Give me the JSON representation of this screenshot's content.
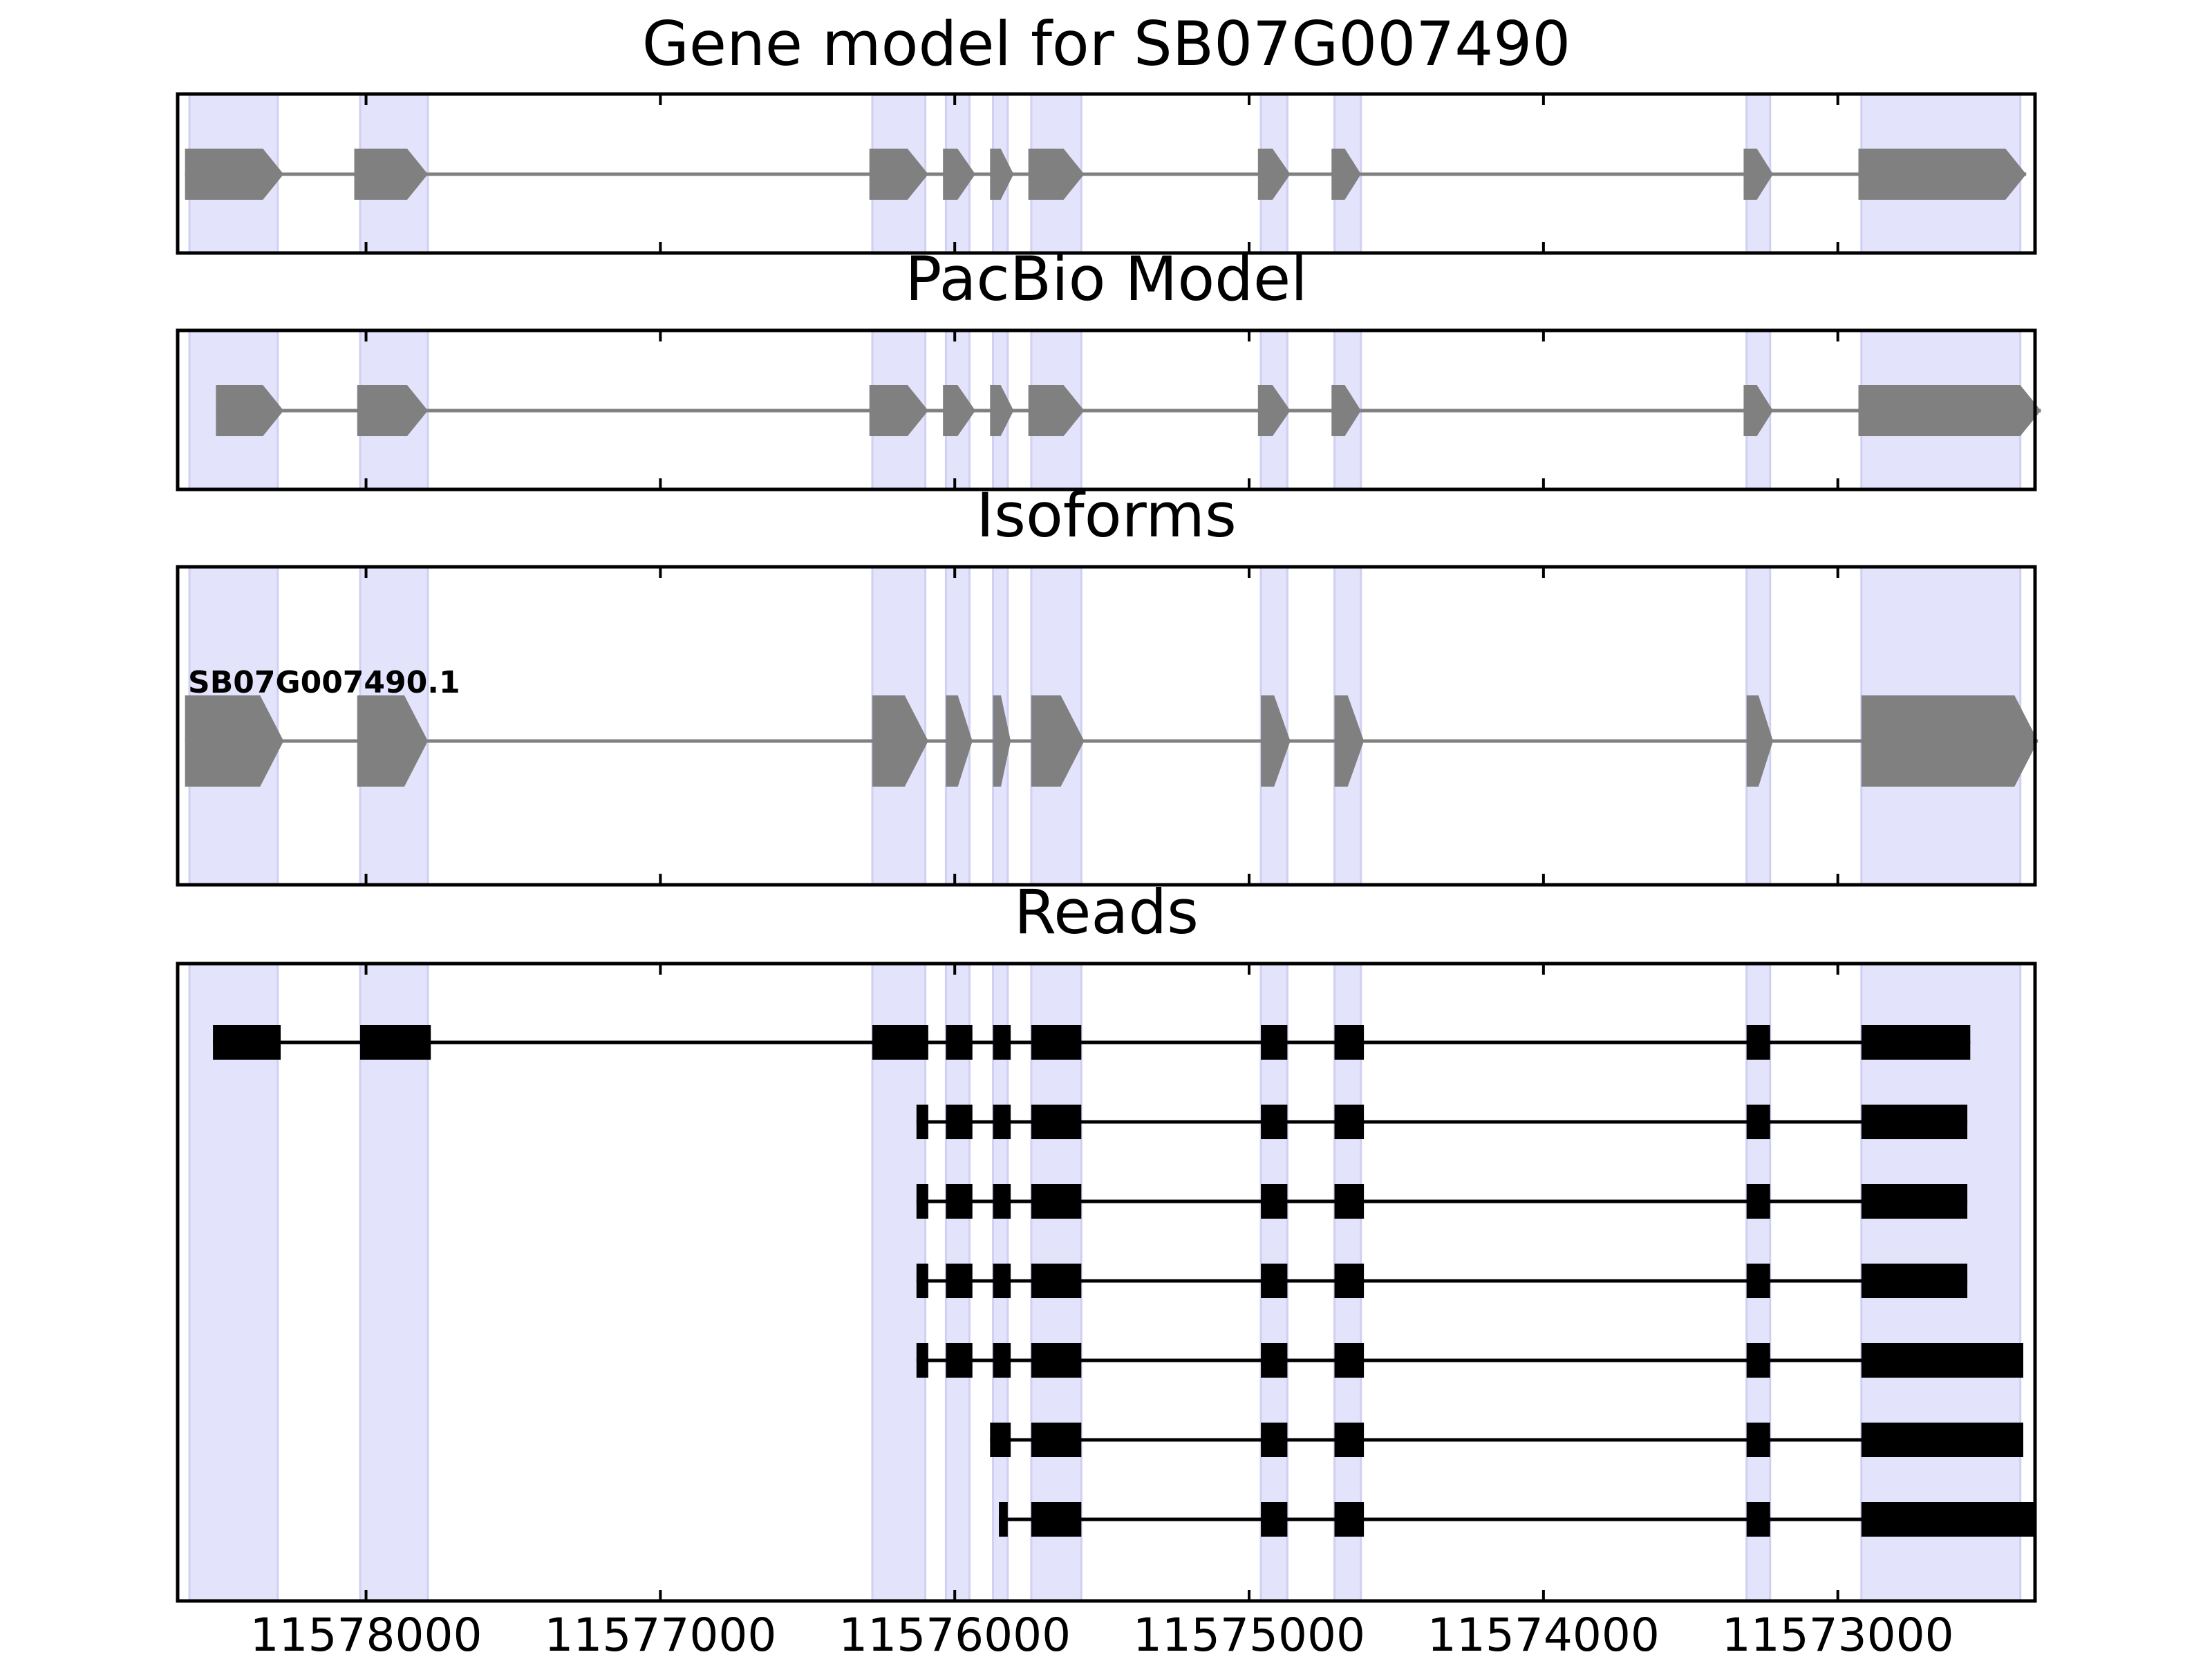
{
  "colors": {
    "highlight": "#e3e3fb",
    "highlight_edge": "#cfd0f2",
    "exon_gray": "#808080",
    "read_black": "#000000",
    "frame": "#000000"
  },
  "chart_data": {
    "type": "gene-structure",
    "x_reversed": true,
    "xlim": [
      11578640,
      11572330
    ],
    "xticks": [
      11578000,
      11577000,
      11576000,
      11575000,
      11574000,
      11573000
    ],
    "xtick_labels": [
      "11578000",
      "11577000",
      "11576000",
      "11575000",
      "11574000",
      "11573000"
    ],
    "highlight_regions": [
      [
        11578600,
        11578300
      ],
      [
        11578020,
        11577790
      ],
      [
        11576280,
        11576100
      ],
      [
        11576030,
        11575950
      ],
      [
        11575870,
        11575820
      ],
      [
        11575740,
        11575570
      ],
      [
        11574960,
        11574870
      ],
      [
        11574710,
        11574620
      ],
      [
        11573310,
        11573230
      ],
      [
        11572920,
        11572380
      ]
    ],
    "panels": [
      {
        "id": "gene-model",
        "title": "Gene model for SB07G007490",
        "style": "arrow",
        "tracks": [
          {
            "label": "",
            "exons": [
              [
                11578615,
                11578280
              ],
              [
                11578040,
                11577790
              ],
              [
                11576290,
                11576090
              ],
              [
                11576040,
                11575930
              ],
              [
                11575880,
                11575800
              ],
              [
                11575750,
                11575560
              ],
              [
                11574970,
                11574860
              ],
              [
                11574720,
                11574620
              ],
              [
                11573320,
                11573220
              ],
              [
                11572930,
                11572360
              ]
            ]
          }
        ]
      },
      {
        "id": "pacbio-model",
        "title": "PacBio Model",
        "style": "arrow",
        "tracks": [
          {
            "label": "",
            "exons": [
              [
                11578510,
                11578280
              ],
              [
                11578030,
                11577790
              ],
              [
                11576290,
                11576090
              ],
              [
                11576040,
                11575930
              ],
              [
                11575880,
                11575800
              ],
              [
                11575750,
                11575560
              ],
              [
                11574970,
                11574860
              ],
              [
                11574720,
                11574620
              ],
              [
                11573320,
                11573220
              ],
              [
                11572930,
                11572310
              ]
            ]
          }
        ]
      },
      {
        "id": "isoforms",
        "title": "Isoforms",
        "style": "arrow-large",
        "tracks": [
          {
            "label": "SB07G007490.1",
            "exons": [
              [
                11578615,
                11578280
              ],
              [
                11578030,
                11577790
              ],
              [
                11576280,
                11576090
              ],
              [
                11576030,
                11575940
              ],
              [
                11575870,
                11575810
              ],
              [
                11575740,
                11575560
              ],
              [
                11574960,
                11574860
              ],
              [
                11574710,
                11574610
              ],
              [
                11573310,
                11573220
              ],
              [
                11572920,
                11572320
              ]
            ]
          }
        ]
      },
      {
        "id": "reads",
        "title": "Reads",
        "style": "block",
        "tracks": [
          {
            "label": "",
            "exons": [
              [
                11578520,
                11578290
              ],
              [
                11578020,
                11577780
              ],
              [
                11576280,
                11576090
              ],
              [
                11576030,
                11575940
              ],
              [
                11575870,
                11575810
              ],
              [
                11575740,
                11575570
              ],
              [
                11574960,
                11574870
              ],
              [
                11574710,
                11574610
              ],
              [
                11573310,
                11573230
              ],
              [
                11572920,
                11572550
              ]
            ]
          },
          {
            "label": "",
            "exons": [
              [
                11576130,
                11576090
              ],
              [
                11576030,
                11575940
              ],
              [
                11575870,
                11575810
              ],
              [
                11575740,
                11575570
              ],
              [
                11574960,
                11574870
              ],
              [
                11574710,
                11574610
              ],
              [
                11573310,
                11573230
              ],
              [
                11572920,
                11572560
              ]
            ]
          },
          {
            "label": "",
            "exons": [
              [
                11576130,
                11576090
              ],
              [
                11576030,
                11575940
              ],
              [
                11575870,
                11575810
              ],
              [
                11575740,
                11575570
              ],
              [
                11574960,
                11574870
              ],
              [
                11574710,
                11574610
              ],
              [
                11573310,
                11573230
              ],
              [
                11572920,
                11572560
              ]
            ]
          },
          {
            "label": "",
            "exons": [
              [
                11576130,
                11576090
              ],
              [
                11576030,
                11575940
              ],
              [
                11575870,
                11575810
              ],
              [
                11575740,
                11575570
              ],
              [
                11574960,
                11574870
              ],
              [
                11574710,
                11574610
              ],
              [
                11573310,
                11573230
              ],
              [
                11572920,
                11572560
              ]
            ]
          },
          {
            "label": "",
            "exons": [
              [
                11576130,
                11576090
              ],
              [
                11576030,
                11575940
              ],
              [
                11575870,
                11575810
              ],
              [
                11575740,
                11575570
              ],
              [
                11574960,
                11574870
              ],
              [
                11574710,
                11574610
              ],
              [
                11573310,
                11573230
              ],
              [
                11572920,
                11572370
              ]
            ]
          },
          {
            "label": "",
            "exons": [
              [
                11575880,
                11575810
              ],
              [
                11575740,
                11575570
              ],
              [
                11574960,
                11574870
              ],
              [
                11574710,
                11574610
              ],
              [
                11573310,
                11573230
              ],
              [
                11572920,
                11572370
              ]
            ]
          },
          {
            "label": "",
            "exons": [
              [
                11575850,
                11575820
              ],
              [
                11575740,
                11575570
              ],
              [
                11574960,
                11574870
              ],
              [
                11574710,
                11574610
              ],
              [
                11573310,
                11573230
              ],
              [
                11572920,
                11572330
              ]
            ]
          }
        ]
      }
    ]
  }
}
